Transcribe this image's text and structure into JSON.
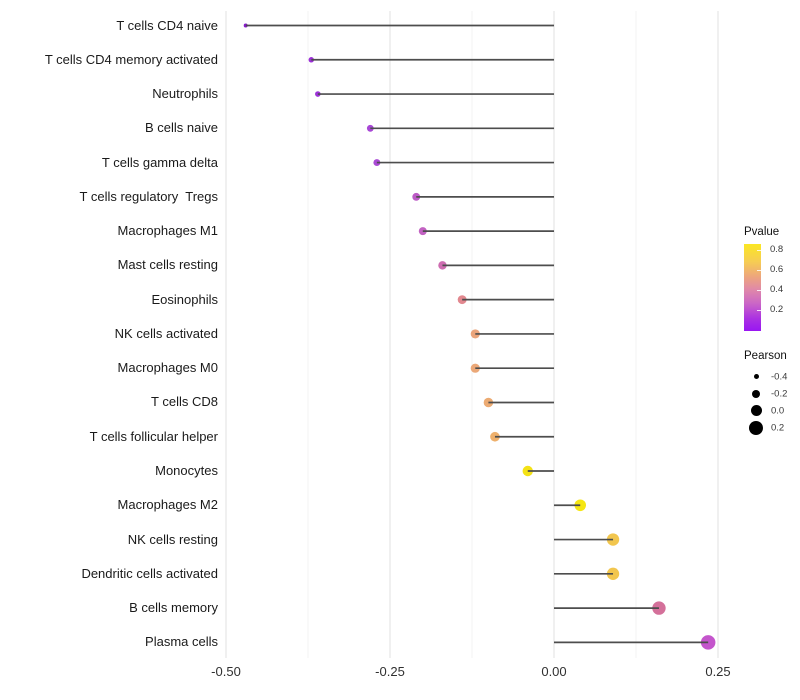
{
  "chart_data": {
    "type": "lollipop",
    "orientation": "horizontal",
    "title": "",
    "xlabel": "",
    "ylabel": "",
    "xlim": [
      -0.52,
      0.27
    ],
    "x_ticks": [
      {
        "label": "-0.50",
        "value": -0.5
      },
      {
        "label": "-0.25",
        "value": -0.25
      },
      {
        "label": "0.00",
        "value": 0.0
      },
      {
        "label": "0.25",
        "value": 0.25
      }
    ],
    "grid_minor_values": [
      -0.375,
      -0.125,
      0.125
    ],
    "baseline_value": 0,
    "grid_on": true,
    "background": "#ffffff",
    "stem_color": "#4d4d4d",
    "points": [
      {
        "label": "T cells CD4 naive",
        "pearson": -0.47,
        "pvalue": 0.05,
        "color": "#8a1ad0"
      },
      {
        "label": "T cells CD4 memory activated",
        "pearson": -0.37,
        "pvalue": 0.1,
        "color": "#9c2fd8"
      },
      {
        "label": "Neutrophils",
        "pearson": -0.36,
        "pvalue": 0.11,
        "color": "#9d33d8"
      },
      {
        "label": "B cells naive",
        "pearson": -0.28,
        "pvalue": 0.15,
        "color": "#a847d6"
      },
      {
        "label": "T cells gamma delta",
        "pearson": -0.27,
        "pvalue": 0.16,
        "color": "#aa4ad5"
      },
      {
        "label": "T cells regulatory  Tregs",
        "pearson": -0.21,
        "pvalue": 0.25,
        "color": "#bc5bc6"
      },
      {
        "label": "Macrophages M1",
        "pearson": -0.2,
        "pvalue": 0.27,
        "color": "#c262c2"
      },
      {
        "label": "Mast cells resting",
        "pearson": -0.17,
        "pvalue": 0.32,
        "color": "#ce6db1"
      },
      {
        "label": "Eosinophils",
        "pearson": -0.14,
        "pvalue": 0.44,
        "color": "#e2888f"
      },
      {
        "label": "NK cells activated",
        "pearson": -0.12,
        "pvalue": 0.52,
        "color": "#eaa47b"
      },
      {
        "label": "Macrophages M0",
        "pearson": -0.12,
        "pvalue": 0.53,
        "color": "#eba878"
      },
      {
        "label": "T cells CD8",
        "pearson": -0.1,
        "pvalue": 0.55,
        "color": "#ecab73"
      },
      {
        "label": "T cells follicular helper",
        "pearson": -0.09,
        "pvalue": 0.57,
        "color": "#eeb06c"
      },
      {
        "label": "Monocytes",
        "pearson": -0.04,
        "pvalue": 0.8,
        "color": "#f4e216"
      },
      {
        "label": "Macrophages M2",
        "pearson": 0.04,
        "pvalue": 0.82,
        "color": "#f5e613"
      },
      {
        "label": "NK cells resting",
        "pearson": 0.09,
        "pvalue": 0.65,
        "color": "#f2c64e"
      },
      {
        "label": "Dendritic cells activated",
        "pearson": 0.09,
        "pvalue": 0.65,
        "color": "#f2c64e"
      },
      {
        "label": "B cells memory",
        "pearson": 0.16,
        "pvalue": 0.35,
        "color": "#d4709a"
      },
      {
        "label": "Plasma cells",
        "pearson": 0.235,
        "pvalue": 0.22,
        "color": "#c455cc"
      }
    ],
    "legend_pvalue": {
      "title": "Pvalue",
      "tick_labels": [
        "0.8",
        "0.6",
        "0.4",
        "0.2"
      ],
      "gradient_top_to_bottom": [
        "#fbe723",
        "#f6cd52",
        "#eda47e",
        "#e089a8",
        "#cb67c6",
        "#aa31e2",
        "#9916f2"
      ]
    },
    "legend_pearson": {
      "title": "Pearson",
      "items": [
        {
          "label": "-0.4",
          "value": -0.4
        },
        {
          "label": "-0.2",
          "value": -0.2
        },
        {
          "label": "0.0",
          "value": 0.0
        },
        {
          "label": "0.2",
          "value": 0.2
        }
      ],
      "circle_color": "#000000"
    }
  }
}
